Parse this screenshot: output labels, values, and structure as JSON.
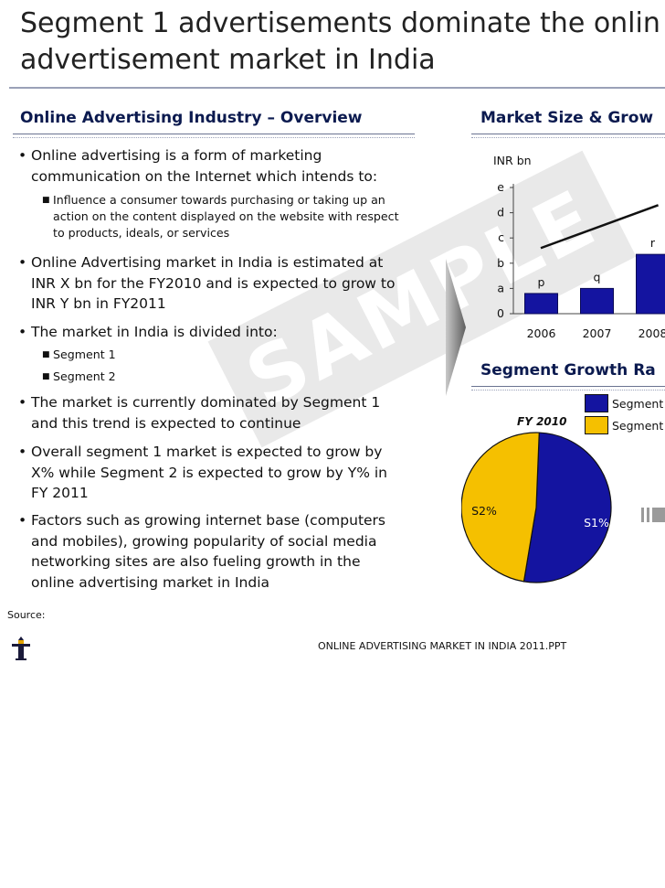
{
  "title": {
    "line1": "Segment 1 advertisements dominate the onlin",
    "line2": "advertisement market in India"
  },
  "left_section": {
    "heading": "Online Advertising Industry – Overview",
    "bullets": [
      {
        "text": "Online advertising is a form of marketing communication on the Internet which intends to:",
        "subs": [
          "Influence a consumer towards purchasing or taking up an action on the content displayed on the website with respect to products, ideals, or services"
        ]
      },
      {
        "text": "Online Advertising market in India is estimated at INR X bn for the FY2010 and is expected to grow to INR Y bn in FY2011",
        "subs": []
      },
      {
        "text": "The market in India is divided into:",
        "subs": [
          "Segment 1",
          "Segment 2"
        ]
      },
      {
        "text": "The market is currently dominated by Segment 1 and this trend is expected to continue",
        "subs": []
      },
      {
        "text": "Overall segment 1 market is expected to grow by X% while Segment 2 is expected to grow by Y% in FY 2011",
        "subs": []
      },
      {
        "text": "Factors such as growing internet base (computers and mobiles), growing popularity of social media networking sites are also fueling growth in the online advertising market in India",
        "subs": []
      }
    ]
  },
  "right_section": {
    "heading1": "Market Size & Grow",
    "heading2": "Segment Growth Ra"
  },
  "watermark": "SAMPLE",
  "source_label": "Source:",
  "footer": "ONLINE ADVERTISING MARKET IN INDIA 2011.PPT",
  "colors": {
    "bar": "#1414a0",
    "segment2": "#f5c000",
    "heading": "#0b1a4f",
    "watermark": "#e6e6e6"
  },
  "chart_data": [
    {
      "type": "bar",
      "ylabel": "INR bn",
      "y_ticks": [
        "0",
        "a",
        "b",
        "c",
        "d",
        "e"
      ],
      "categories": [
        "2006",
        "2007",
        "2008"
      ],
      "values": [
        0.8,
        1.0,
        2.35
      ],
      "data_labels": [
        "p",
        "q",
        "r"
      ],
      "ylim": [
        0,
        5
      ],
      "trend_line": {
        "from": [
          0.0,
          2.6
        ],
        "to": [
          2.6,
          4.3
        ]
      }
    },
    {
      "type": "pie",
      "title": "FY 2010",
      "slices": [
        {
          "label": "S1%",
          "share": 0.52,
          "color": "#1414a0"
        },
        {
          "label": "S2%",
          "share": 0.48,
          "color": "#f5c000"
        }
      ],
      "legend": {
        "placement": "top-right",
        "entries": [
          "Segment",
          "Segment"
        ]
      }
    }
  ]
}
